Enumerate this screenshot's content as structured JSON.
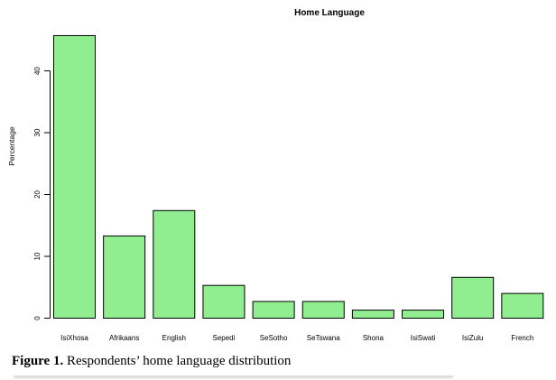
{
  "chart_data": {
    "type": "bar",
    "title": "Home Language",
    "xlabel": "",
    "ylabel": "Percentage",
    "categories": [
      "IsiXhosa",
      "Afrikaans",
      "English",
      "Sepedi",
      "SeSotho",
      "SeTswana",
      "Shona",
      "IsiSwati",
      "IsiZulu",
      "French"
    ],
    "values": [
      45.7,
      13.3,
      17.4,
      5.3,
      2.7,
      2.7,
      1.3,
      1.3,
      6.6,
      4.0
    ],
    "ylim": [
      0,
      46
    ],
    "yticks": [
      0,
      10,
      20,
      30,
      40
    ],
    "grid": false,
    "legend": false,
    "bar_fill": "#90EE90",
    "bar_border": "#000000"
  },
  "caption": {
    "label": "Figure 1.",
    "text": " Respondents’ home language distribution"
  }
}
